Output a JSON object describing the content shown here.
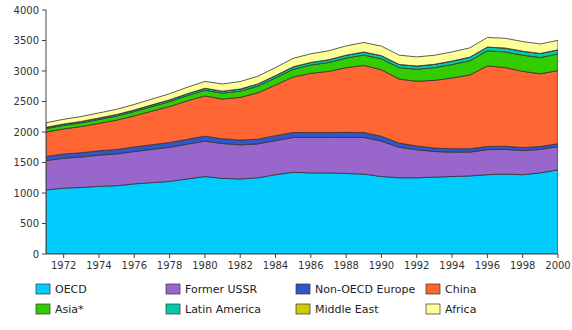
{
  "chart_data": {
    "type": "area",
    "stacked": true,
    "grid": false,
    "legend": "bottom",
    "x": [
      1971,
      1972,
      1973,
      1974,
      1975,
      1976,
      1977,
      1978,
      1979,
      1980,
      1981,
      1982,
      1983,
      1984,
      1985,
      1986,
      1987,
      1988,
      1989,
      1990,
      1991,
      1992,
      1993,
      1994,
      1995,
      1996,
      1997,
      1998,
      1999,
      2000
    ],
    "xlim": [
      1971,
      2000
    ],
    "xticks": [
      1972,
      1974,
      1976,
      1978,
      1980,
      1982,
      1984,
      1986,
      1988,
      1990,
      1992,
      1994,
      1996,
      1998,
      2000
    ],
    "ylim": [
      0,
      4000
    ],
    "yticks": [
      0,
      500,
      1000,
      1500,
      2000,
      2500,
      3000,
      3500,
      4000
    ],
    "series": [
      {
        "name": "OECD",
        "color": "#00CCFF",
        "values": [
          1050,
          1080,
          1090,
          1110,
          1120,
          1150,
          1170,
          1190,
          1230,
          1270,
          1240,
          1230,
          1250,
          1300,
          1340,
          1330,
          1330,
          1320,
          1310,
          1270,
          1250,
          1250,
          1260,
          1270,
          1280,
          1300,
          1310,
          1300,
          1330,
          1380
        ]
      },
      {
        "name": "Former USSR",
        "color": "#9966CC",
        "values": [
          480,
          490,
          500,
          510,
          520,
          530,
          545,
          560,
          570,
          580,
          570,
          560,
          555,
          560,
          570,
          580,
          580,
          590,
          600,
          580,
          500,
          460,
          420,
          400,
          390,
          410,
          405,
          395,
          385,
          380
        ]
      },
      {
        "name": "Non-OECD Europe",
        "color": "#3355CC",
        "values": [
          70,
          70,
          70,
          72,
          74,
          75,
          77,
          78,
          80,
          82,
          80,
          78,
          78,
          80,
          82,
          82,
          83,
          84,
          82,
          80,
          68,
          62,
          57,
          56,
          54,
          53,
          52,
          50,
          48,
          48
        ]
      },
      {
        "name": "China",
        "color": "#FF6633",
        "values": [
          400,
          410,
          430,
          450,
          480,
          510,
          550,
          590,
          630,
          660,
          650,
          700,
          760,
          830,
          910,
          970,
          1000,
          1060,
          1100,
          1090,
          1050,
          1060,
          1110,
          1160,
          1210,
          1320,
          1290,
          1250,
          1190,
          1200
        ]
      },
      {
        "name": "Asia*",
        "color": "#33CC00",
        "values": [
          55,
          58,
          60,
          63,
          66,
          70,
          75,
          80,
          86,
          92,
          96,
          102,
          108,
          116,
          126,
          136,
          146,
          158,
          170,
          180,
          188,
          196,
          208,
          220,
          234,
          248,
          256,
          264,
          268,
          272
        ]
      },
      {
        "name": "Latin America",
        "color": "#00CCAA",
        "values": [
          20,
          21,
          22,
          23,
          24,
          25,
          26,
          27,
          29,
          31,
          32,
          33,
          35,
          37,
          39,
          41,
          43,
          46,
          48,
          50,
          50,
          51,
          53,
          55,
          57,
          60,
          62,
          64,
          65,
          66
        ]
      },
      {
        "name": "Middle East",
        "color": "#CCCC00",
        "values": [
          2,
          2,
          2,
          2,
          2,
          2,
          2,
          2,
          2,
          2,
          2,
          2,
          2,
          2,
          2,
          2,
          2,
          2,
          2,
          2,
          2,
          2,
          2,
          2,
          2,
          2,
          2,
          2,
          2,
          2
        ]
      },
      {
        "name": "Africa",
        "color": "#FFFF99",
        "values": [
          75,
          78,
          80,
          83,
          86,
          90,
          95,
          100,
          106,
          112,
          118,
          122,
          126,
          132,
          138,
          142,
          146,
          152,
          155,
          156,
          152,
          150,
          148,
          150,
          152,
          156,
          160,
          158,
          155,
          155
        ]
      }
    ]
  }
}
